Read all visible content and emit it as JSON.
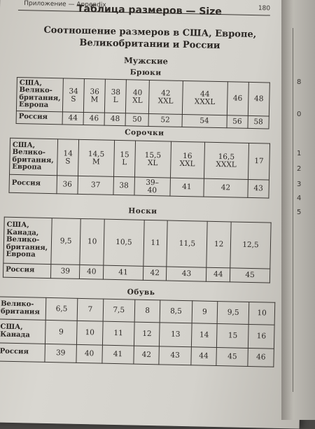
{
  "header": {
    "running_left": "Приложение — Appendix",
    "page_number": "180",
    "title": "Таблица размеров — Size"
  },
  "heading": "Соотношение размеров в США, Европе,\nВеликобритании и России",
  "section_men": "Мужские",
  "tables": [
    {
      "caption": "Брюки",
      "rows": [
        {
          "label": "США,\nВелико-\nбритания,\nЕвропа",
          "cells": [
            "34\nS",
            "36\nM",
            "38\nL",
            "40\nXL",
            "42\nXXL",
            "44\nXXXL",
            "46",
            "48"
          ]
        },
        {
          "label": "Россия",
          "cells": [
            "44",
            "46",
            "48",
            "50",
            "52",
            "54",
            "56",
            "58"
          ]
        }
      ]
    },
    {
      "caption": "Сорочки",
      "rows": [
        {
          "label": "США,\nВелико-\nбритания,\nЕвропа",
          "cells": [
            "14\nS",
            "14,5\nM",
            "15\nL",
            "15,5\nXL",
            "16\nXXL",
            "16,5\nXXXL",
            "17"
          ]
        },
        {
          "label": "Россия",
          "cells": [
            "36",
            "37",
            "38",
            "39–\n40",
            "41",
            "42",
            "43"
          ]
        }
      ]
    },
    {
      "caption": "Носки",
      "rows": [
        {
          "label": "США,\nКанада,\nВелико-\nбритания,\nЕвропа",
          "cells": [
            "9,5",
            "10",
            "10,5",
            "11",
            "11,5",
            "12",
            "12,5"
          ]
        },
        {
          "label": "Россия",
          "cells": [
            "39",
            "40",
            "41",
            "42",
            "43",
            "44",
            "45"
          ]
        }
      ]
    },
    {
      "caption": "Обувь",
      "rows": [
        {
          "label": "Велико-\nбритания",
          "cells": [
            "6,5",
            "7",
            "7,5",
            "8",
            "8,5",
            "9",
            "9,5",
            "10"
          ]
        },
        {
          "label": "США,\nКанада",
          "cells": [
            "9",
            "10",
            "11",
            "12",
            "13",
            "14",
            "15",
            "16"
          ]
        },
        {
          "label": "Россия",
          "cells": [
            "39",
            "40",
            "41",
            "42",
            "43",
            "44",
            "45",
            "46"
          ]
        }
      ]
    }
  ],
  "side_page_numbers": [
    "8",
    "0",
    "1",
    "2",
    "3",
    "4",
    "5"
  ]
}
